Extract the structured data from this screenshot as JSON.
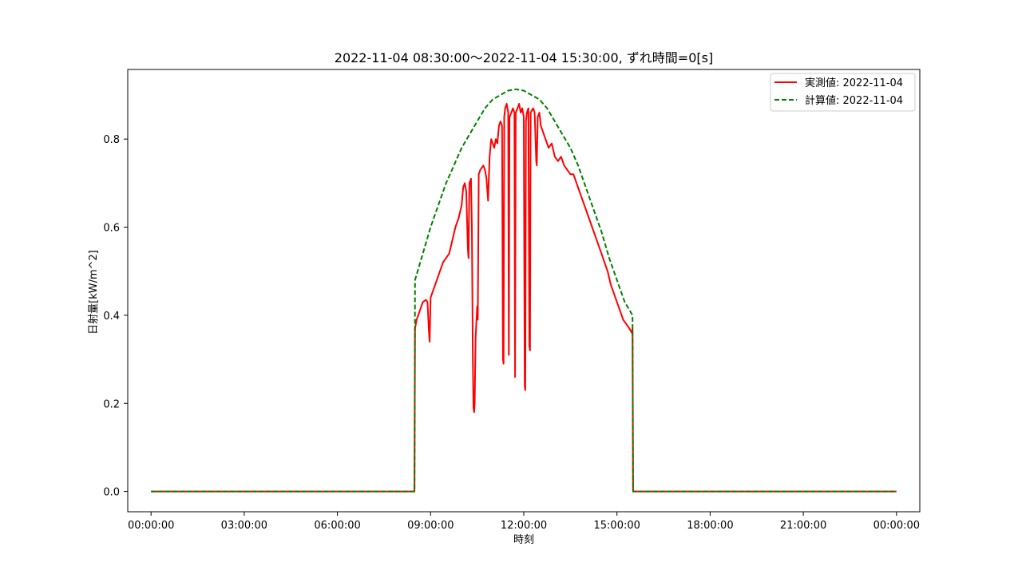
{
  "chart_data": {
    "type": "line",
    "title": "2022-11-04 08:30:00～2022-11-04 15:30:00, ずれ時間=0[s]",
    "xlabel": "時刻",
    "ylabel": "日射量[kW/m^2]",
    "x_unit": "hours",
    "xlim": [
      -0.75,
      24.75
    ],
    "ylim": [
      -0.046,
      0.958
    ],
    "x_ticks": [
      {
        "value": 0,
        "label": "00:00:00"
      },
      {
        "value": 3,
        "label": "03:00:00"
      },
      {
        "value": 6,
        "label": "06:00:00"
      },
      {
        "value": 9,
        "label": "09:00:00"
      },
      {
        "value": 12,
        "label": "12:00:00"
      },
      {
        "value": 15,
        "label": "15:00:00"
      },
      {
        "value": 18,
        "label": "18:00:00"
      },
      {
        "value": 21,
        "label": "21:00:00"
      },
      {
        "value": 24,
        "label": "00:00:00"
      }
    ],
    "y_ticks": [
      {
        "value": 0.0,
        "label": "0.0"
      },
      {
        "value": 0.2,
        "label": "0.2"
      },
      {
        "value": 0.4,
        "label": "0.4"
      },
      {
        "value": 0.6,
        "label": "0.6"
      },
      {
        "value": 0.8,
        "label": "0.8"
      }
    ],
    "grid": false,
    "legend_position": "top-right",
    "series": [
      {
        "name": "実測値: 2022-11-04",
        "color": "#ff0000",
        "style": "solid",
        "points": [
          [
            0,
            0
          ],
          [
            8.48,
            0
          ],
          [
            8.5,
            0.37
          ],
          [
            8.55,
            0.39
          ],
          [
            8.65,
            0.41
          ],
          [
            8.75,
            0.43
          ],
          [
            8.85,
            0.435
          ],
          [
            8.9,
            0.43
          ],
          [
            8.95,
            0.36
          ],
          [
            8.97,
            0.34
          ],
          [
            9.0,
            0.44
          ],
          [
            9.1,
            0.46
          ],
          [
            9.2,
            0.48
          ],
          [
            9.3,
            0.5
          ],
          [
            9.4,
            0.52
          ],
          [
            9.5,
            0.53
          ],
          [
            9.6,
            0.54
          ],
          [
            9.7,
            0.57
          ],
          [
            9.8,
            0.6
          ],
          [
            9.9,
            0.62
          ],
          [
            10.0,
            0.65
          ],
          [
            10.05,
            0.69
          ],
          [
            10.1,
            0.7
          ],
          [
            10.15,
            0.68
          ],
          [
            10.2,
            0.55
          ],
          [
            10.22,
            0.53
          ],
          [
            10.25,
            0.7
          ],
          [
            10.3,
            0.71
          ],
          [
            10.33,
            0.6
          ],
          [
            10.36,
            0.3
          ],
          [
            10.38,
            0.19
          ],
          [
            10.4,
            0.18
          ],
          [
            10.42,
            0.2
          ],
          [
            10.45,
            0.35
          ],
          [
            10.5,
            0.42
          ],
          [
            10.52,
            0.39
          ],
          [
            10.55,
            0.72
          ],
          [
            10.6,
            0.73
          ],
          [
            10.7,
            0.74
          ],
          [
            10.75,
            0.73
          ],
          [
            10.8,
            0.71
          ],
          [
            10.85,
            0.66
          ],
          [
            10.9,
            0.76
          ],
          [
            10.95,
            0.8
          ],
          [
            11.0,
            0.79
          ],
          [
            11.05,
            0.78
          ],
          [
            11.1,
            0.8
          ],
          [
            11.15,
            0.79
          ],
          [
            11.2,
            0.83
          ],
          [
            11.25,
            0.84
          ],
          [
            11.3,
            0.83
          ],
          [
            11.33,
            0.3
          ],
          [
            11.35,
            0.29
          ],
          [
            11.37,
            0.85
          ],
          [
            11.4,
            0.87
          ],
          [
            11.45,
            0.88
          ],
          [
            11.5,
            0.86
          ],
          [
            11.52,
            0.31
          ],
          [
            11.54,
            0.85
          ],
          [
            11.6,
            0.86
          ],
          [
            11.65,
            0.87
          ],
          [
            11.7,
            0.86
          ],
          [
            11.72,
            0.26
          ],
          [
            11.74,
            0.86
          ],
          [
            11.8,
            0.87
          ],
          [
            11.85,
            0.88
          ],
          [
            11.9,
            0.86
          ],
          [
            11.95,
            0.87
          ],
          [
            12.0,
            0.85
          ],
          [
            12.03,
            0.24
          ],
          [
            12.05,
            0.23
          ],
          [
            12.07,
            0.84
          ],
          [
            12.1,
            0.86
          ],
          [
            12.15,
            0.87
          ],
          [
            12.18,
            0.33
          ],
          [
            12.2,
            0.32
          ],
          [
            12.22,
            0.86
          ],
          [
            12.3,
            0.87
          ],
          [
            12.35,
            0.86
          ],
          [
            12.4,
            0.75
          ],
          [
            12.42,
            0.74
          ],
          [
            12.45,
            0.85
          ],
          [
            12.5,
            0.86
          ],
          [
            12.55,
            0.83
          ],
          [
            12.6,
            0.82
          ],
          [
            12.7,
            0.8
          ],
          [
            12.8,
            0.78
          ],
          [
            12.9,
            0.79
          ],
          [
            13.0,
            0.76
          ],
          [
            13.1,
            0.75
          ],
          [
            13.2,
            0.76
          ],
          [
            13.3,
            0.74
          ],
          [
            13.4,
            0.73
          ],
          [
            13.5,
            0.72
          ],
          [
            13.6,
            0.72
          ],
          [
            13.7,
            0.7
          ],
          [
            13.8,
            0.68
          ],
          [
            13.9,
            0.66
          ],
          [
            14.0,
            0.64
          ],
          [
            14.1,
            0.62
          ],
          [
            14.2,
            0.6
          ],
          [
            14.3,
            0.58
          ],
          [
            14.4,
            0.56
          ],
          [
            14.5,
            0.54
          ],
          [
            14.6,
            0.52
          ],
          [
            14.7,
            0.5
          ],
          [
            14.8,
            0.47
          ],
          [
            14.9,
            0.45
          ],
          [
            15.0,
            0.43
          ],
          [
            15.1,
            0.41
          ],
          [
            15.2,
            0.39
          ],
          [
            15.3,
            0.38
          ],
          [
            15.4,
            0.37
          ],
          [
            15.48,
            0.36
          ],
          [
            15.5,
            0.37
          ],
          [
            15.52,
            0
          ],
          [
            24,
            0
          ]
        ]
      },
      {
        "name": "計算値: 2022-11-04",
        "color": "#008000",
        "style": "dashed",
        "points": [
          [
            0,
            0
          ],
          [
            8.48,
            0
          ],
          [
            8.5,
            0.48
          ],
          [
            8.75,
            0.54
          ],
          [
            9.0,
            0.6
          ],
          [
            9.25,
            0.65
          ],
          [
            9.5,
            0.7
          ],
          [
            9.75,
            0.74
          ],
          [
            10.0,
            0.78
          ],
          [
            10.25,
            0.81
          ],
          [
            10.5,
            0.84
          ],
          [
            10.75,
            0.87
          ],
          [
            11.0,
            0.89
          ],
          [
            11.25,
            0.9
          ],
          [
            11.5,
            0.91
          ],
          [
            11.75,
            0.913
          ],
          [
            12.0,
            0.91
          ],
          [
            12.25,
            0.9
          ],
          [
            12.5,
            0.89
          ],
          [
            12.75,
            0.87
          ],
          [
            13.0,
            0.84
          ],
          [
            13.25,
            0.81
          ],
          [
            13.5,
            0.78
          ],
          [
            13.75,
            0.74
          ],
          [
            14.0,
            0.69
          ],
          [
            14.25,
            0.64
          ],
          [
            14.5,
            0.59
          ],
          [
            14.75,
            0.53
          ],
          [
            15.0,
            0.48
          ],
          [
            15.25,
            0.43
          ],
          [
            15.5,
            0.4
          ],
          [
            15.52,
            0
          ],
          [
            24,
            0
          ]
        ]
      }
    ]
  }
}
